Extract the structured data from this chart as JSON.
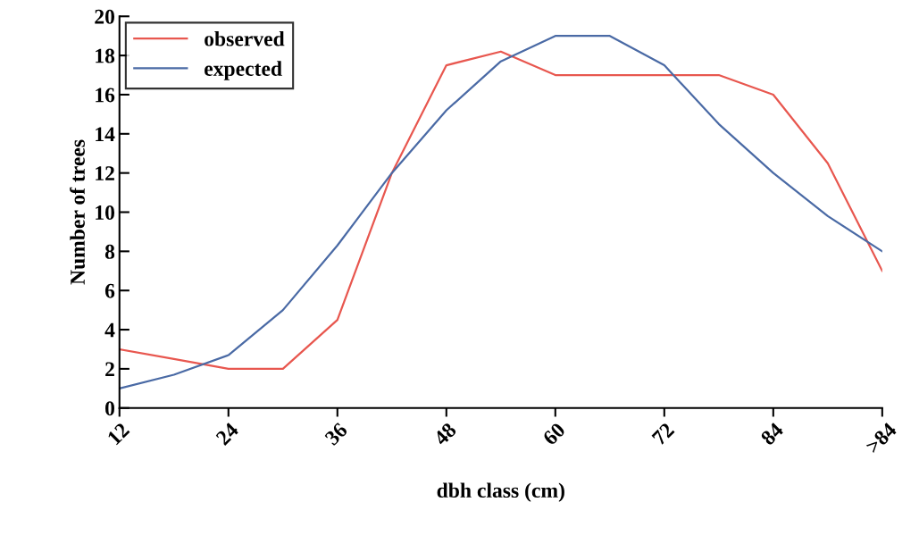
{
  "chart_data": {
    "type": "line",
    "xlabel": "dbh class (cm)",
    "ylabel": "Number of trees",
    "categories": [
      "12",
      null,
      "24",
      null,
      "36",
      null,
      "48",
      null,
      "60",
      null,
      "72",
      null,
      "84",
      null,
      ">84"
    ],
    "series": [
      {
        "name": "observed",
        "color": "#e8574f",
        "values": [
          3.0,
          2.5,
          2.0,
          2.0,
          4.5,
          12.0,
          17.5,
          18.2,
          17.0,
          17.0,
          17.0,
          17.0,
          16.0,
          12.5,
          7.0
        ]
      },
      {
        "name": "expected",
        "color": "#4a6aa5",
        "values": [
          1.0,
          1.7,
          2.7,
          5.0,
          8.3,
          12.0,
          15.2,
          17.7,
          19.0,
          19.0,
          17.5,
          14.5,
          12.0,
          9.8,
          8.0
        ]
      }
    ],
    "ylim": [
      0,
      20
    ],
    "yticks": [
      0,
      2,
      4,
      6,
      8,
      10,
      12,
      14,
      16,
      18,
      20
    ],
    "grid": false,
    "legend": "top left",
    "marker": "none",
    "line_style": "solid"
  }
}
